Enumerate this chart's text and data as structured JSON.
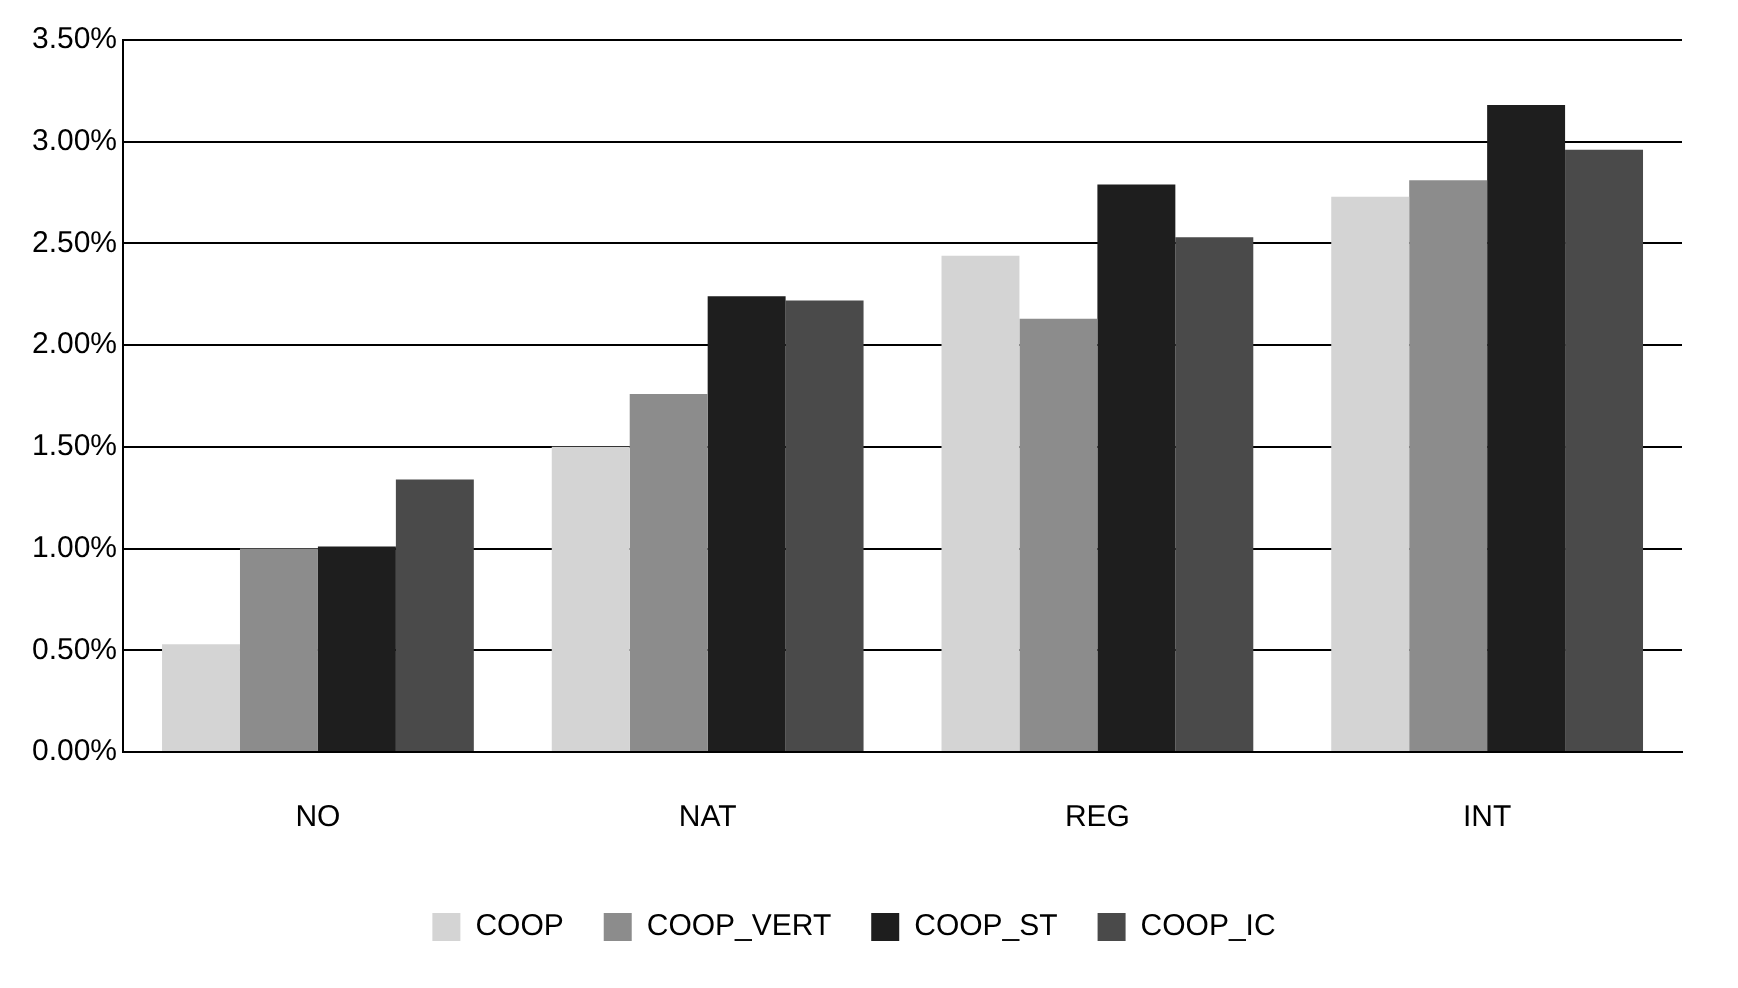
{
  "chart_data": {
    "type": "bar",
    "categories": [
      "NO",
      "NAT",
      "REG",
      "INT"
    ],
    "series": [
      {
        "name": "COOP",
        "color": "#d4d4d4",
        "values": [
          0.53,
          1.5,
          2.44,
          2.73
        ]
      },
      {
        "name": "COOP_VERT",
        "color": "#8c8c8c",
        "values": [
          1.0,
          1.76,
          2.13,
          2.81
        ]
      },
      {
        "name": "COOP_ST",
        "color": "#1e1e1e",
        "values": [
          1.01,
          2.24,
          2.79,
          3.18
        ]
      },
      {
        "name": "COOP_IC",
        "color": "#4a4a4a",
        "values": [
          1.34,
          2.22,
          2.53,
          2.96
        ]
      }
    ],
    "ylim": [
      0,
      3.5
    ],
    "yticks": [
      {
        "value": 0,
        "label": "0.00%"
      },
      {
        "value": 0.5,
        "label": "0.50%"
      },
      {
        "value": 1,
        "label": "1.00%"
      },
      {
        "value": 1.5,
        "label": "1.50%"
      },
      {
        "value": 2,
        "label": "2.00%"
      },
      {
        "value": 2.5,
        "label": "2.50%"
      },
      {
        "value": 3,
        "label": "3.00%"
      },
      {
        "value": 3.5,
        "label": "3.50%"
      }
    ],
    "grid": "y",
    "legend": "bottom"
  }
}
